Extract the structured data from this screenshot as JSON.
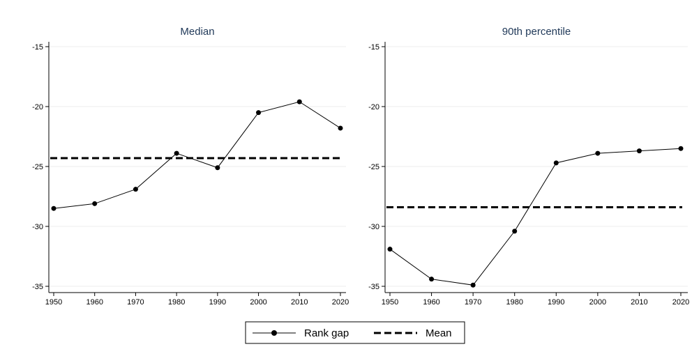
{
  "chart_data": [
    {
      "type": "line",
      "title": "Median",
      "xlabel": "",
      "ylabel": "",
      "x": [
        1950,
        1960,
        1970,
        1980,
        1990,
        2000,
        2010,
        2020
      ],
      "xticks": [
        1950,
        1960,
        1970,
        1980,
        1990,
        2000,
        2010,
        2020
      ],
      "yticks": [
        -15,
        -20,
        -25,
        -30,
        -35
      ],
      "xlim": [
        1950,
        2020
      ],
      "ylim": [
        -35,
        -15
      ],
      "grid": true,
      "series": [
        {
          "name": "Rank gap",
          "style": "solid-with-markers",
          "values": [
            -28.5,
            -28.1,
            -26.9,
            -23.9,
            -25.1,
            -20.5,
            -19.6,
            -21.8
          ]
        },
        {
          "name": "Mean",
          "style": "dashed",
          "values": [
            -24.3,
            -24.3,
            -24.3,
            -24.3,
            -24.3,
            -24.3,
            -24.3,
            -24.3
          ]
        }
      ]
    },
    {
      "type": "line",
      "title": "90th percentile",
      "xlabel": "",
      "ylabel": "",
      "x": [
        1950,
        1960,
        1970,
        1980,
        1990,
        2000,
        2010,
        2020
      ],
      "xticks": [
        1950,
        1960,
        1970,
        1980,
        1990,
        2000,
        2010,
        2020
      ],
      "yticks": [
        -15,
        -20,
        -25,
        -30,
        -35
      ],
      "xlim": [
        1950,
        2020
      ],
      "ylim": [
        -35,
        -15
      ],
      "grid": true,
      "series": [
        {
          "name": "Rank gap",
          "style": "solid-with-markers",
          "values": [
            -31.9,
            -34.4,
            -34.9,
            -30.4,
            -24.7,
            -23.9,
            -23.7,
            -23.5
          ]
        },
        {
          "name": "Mean",
          "style": "dashed",
          "values": [
            -28.4,
            -28.4,
            -28.4,
            -28.4,
            -28.4,
            -28.4,
            -28.4,
            -28.4
          ]
        }
      ]
    }
  ],
  "legend": {
    "position": "bottom-center",
    "entries": [
      {
        "label": "Rank gap",
        "style": "solid-with-markers"
      },
      {
        "label": "Mean",
        "style": "dashed"
      }
    ]
  },
  "colors": {
    "title": "#1f3858",
    "line": "#000000",
    "grid": "#ececec",
    "axis": "#000000",
    "legend_border": "#000000"
  }
}
